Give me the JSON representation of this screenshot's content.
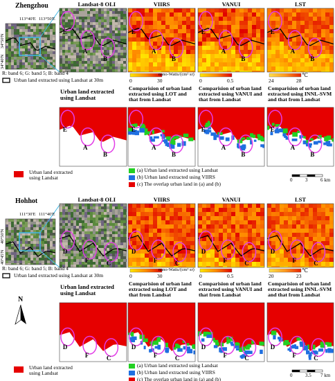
{
  "sections": [
    {
      "city": "Zhengzhou",
      "lon_labels": [
        "113°40'E",
        "113°50'E"
      ],
      "lat_labels": [
        "34°50'N",
        "34°40'N"
      ],
      "band_note": "R: band 6; G: band 5; B: band 4",
      "outline_note": "Urban land extracted using Landsat at 30m",
      "top_panels": [
        {
          "title": "Landsat-8 OLI"
        },
        {
          "title": "VIIRS",
          "colorbar": {
            "unit": "nano-Watts/(cm² sr)",
            "labels": [
              "0",
              "30"
            ]
          }
        },
        {
          "title": "VANUI",
          "colorbar": {
            "labels": [
              "0",
              "0.5"
            ]
          }
        },
        {
          "title": "LST",
          "colorbar": {
            "unit": "℃",
            "labels": [
              "24",
              "28"
            ]
          }
        }
      ],
      "markers": [
        "E",
        "A",
        "B"
      ],
      "bottom_panels": [
        "Urban land extracted using Landsat",
        "Comparision of urban land extracted using LOT and that from Landsat",
        "Comparision of urban land extracted using VANUI and that from Landsat",
        "Comparision of urban land extracted using INNL-SVM and that from Landsat"
      ],
      "legend_left": "Urban land extracted using Landsat",
      "legend_right": [
        "(a) Urban land extracted using Landsat",
        "(b) Urban land extracted using VIIRS",
        "(c) The overlap urban land in (a) and (b)"
      ],
      "scale": [
        "0",
        "3",
        "6 km"
      ]
    },
    {
      "city": "Hohhot",
      "lon_labels": [
        "111°30'E",
        "111°40'E"
      ],
      "lat_labels": [
        "40°50'N",
        "40°45'N"
      ],
      "band_note": "R: band 6; G: band 5; B: band 4",
      "outline_note": "Urban land extracted using Landsat at 30m",
      "top_panels": [
        {
          "title": "Landsat-8 OLI"
        },
        {
          "title": "VIIRS",
          "colorbar": {
            "unit": "nano-Watts/(cm² sr)",
            "labels": [
              "0",
              "30"
            ]
          }
        },
        {
          "title": "VANUI",
          "colorbar": {
            "labels": [
              "0",
              "0.5"
            ]
          }
        },
        {
          "title": "LST",
          "colorbar": {
            "unit": "℃",
            "labels": [
              "20",
              "23"
            ]
          }
        }
      ],
      "markers": [
        "D",
        "F",
        "C"
      ],
      "bottom_panels": [
        "Urban land extracted using Landsat",
        "Comparision of urban land extracted using LOT and that from Landsat",
        "Comparision of urban land extracted using VANUI and that from Landsat",
        "Comparision of urban land extracted using INNL-SVM and that from Landsat"
      ],
      "legend_left": "Urban land extracted using Landsat",
      "legend_right": [
        "(a) Urban land extracted using Landsat",
        "(b) Urban land extracted using VIIRS",
        "(c) The overlap urban land in (a) and (b)"
      ],
      "scale": [
        "0",
        "3.5",
        "7 km"
      ]
    }
  ],
  "north": "N"
}
